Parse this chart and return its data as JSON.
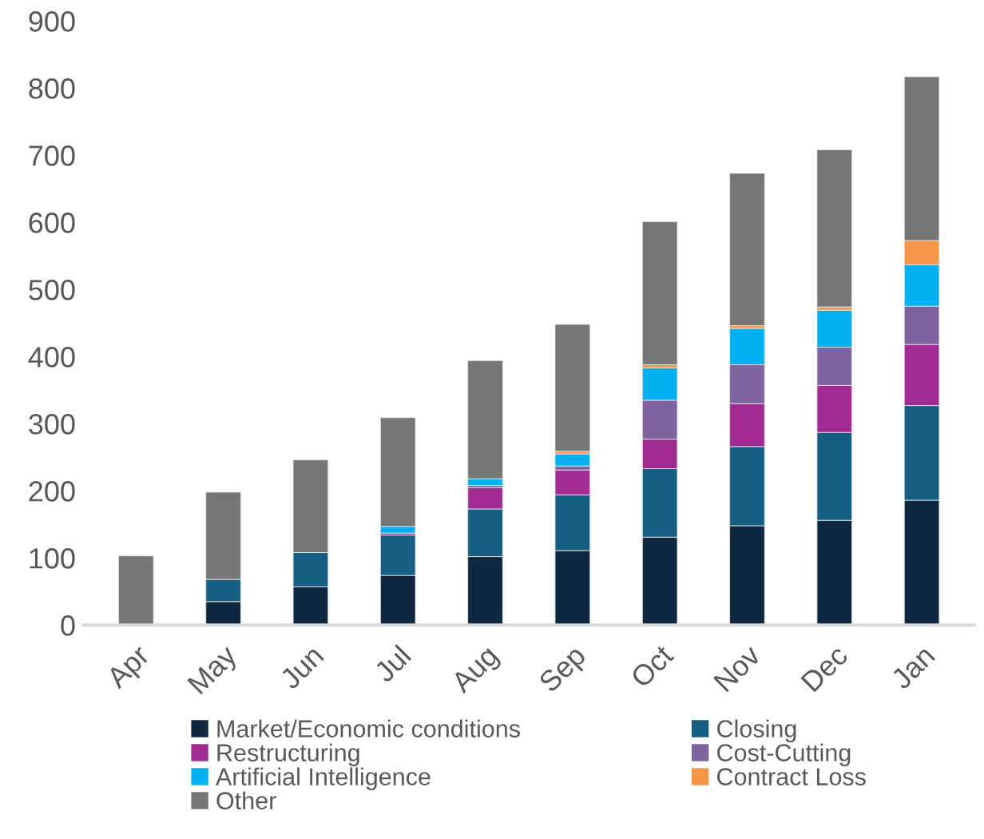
{
  "chart_data": {
    "type": "bar",
    "stacked": true,
    "categories": [
      "Apr",
      "May",
      "Jun",
      "Jul",
      "Aug",
      "Sep",
      "Oct",
      "Nov",
      "Dec",
      "Jan"
    ],
    "series": [
      {
        "name": "Market/Economic conditions",
        "color": "#0f2740",
        "values": [
          0,
          35,
          57,
          74,
          102,
          111,
          131,
          148,
          156,
          186
        ]
      },
      {
        "name": "Closing",
        "color": "#155f82",
        "values": [
          0,
          33,
          51,
          60,
          71,
          83,
          102,
          118,
          131,
          141
        ]
      },
      {
        "name": "Restructuring",
        "color": "#a02b93",
        "values": [
          0,
          0,
          0,
          3,
          32,
          37,
          44,
          64,
          70,
          91
        ]
      },
      {
        "name": "Cost-Cutting",
        "color": "#8064a2",
        "values": [
          0,
          0,
          0,
          0,
          3,
          6,
          58,
          58,
          57,
          57
        ]
      },
      {
        "name": "Artificial Intelligence",
        "color": "#00b0f0",
        "values": [
          0,
          0,
          0,
          10,
          10,
          18,
          48,
          54,
          55,
          62
        ]
      },
      {
        "name": "Contract Loss",
        "color": "#f79646",
        "values": [
          0,
          0,
          0,
          0,
          0,
          4,
          5,
          4,
          5,
          36
        ]
      },
      {
        "name": "Other",
        "color": "#767676",
        "values": [
          103,
          130,
          138,
          162,
          176,
          189,
          213,
          227,
          234,
          244
        ]
      }
    ],
    "ylim": [
      0,
      900
    ],
    "yticks": [
      0,
      100,
      200,
      300,
      400,
      500,
      600,
      700,
      800,
      900
    ],
    "grid": false,
    "legend": "bottom"
  }
}
